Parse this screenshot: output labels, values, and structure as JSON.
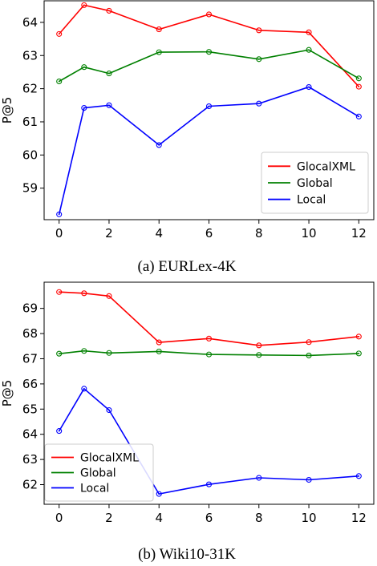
{
  "chart_data": [
    {
      "type": "line",
      "caption": "(a) EURLex-4K",
      "xlabel": "",
      "ylabel": "P@5",
      "x": [
        0,
        1,
        2,
        4,
        6,
        8,
        10,
        12
      ],
      "xticks": [
        0,
        2,
        4,
        6,
        8,
        10,
        12
      ],
      "yticks": [
        59,
        60,
        61,
        62,
        63,
        64
      ],
      "xlim": [
        -0.6,
        12.6
      ],
      "ylim": [
        58.05,
        64.65
      ],
      "grid": false,
      "legend_position": "lower-right",
      "series": [
        {
          "name": "GlocalXML",
          "color": "#ff0000",
          "values": [
            63.65,
            64.52,
            64.35,
            63.79,
            64.24,
            63.76,
            63.7,
            62.06
          ]
        },
        {
          "name": "Global",
          "color": "#008000",
          "values": [
            62.22,
            62.65,
            62.46,
            63.1,
            63.11,
            62.89,
            63.17,
            62.31
          ]
        },
        {
          "name": "Local",
          "color": "#0000ff",
          "values": [
            58.21,
            61.42,
            61.5,
            60.3,
            61.47,
            61.55,
            62.05,
            61.16
          ]
        }
      ]
    },
    {
      "type": "line",
      "caption": "(b) Wiki10-31K",
      "xlabel": "",
      "ylabel": "P@5",
      "x": [
        0,
        1,
        2,
        4,
        6,
        8,
        10,
        12
      ],
      "xticks": [
        0,
        2,
        4,
        6,
        8,
        10,
        12
      ],
      "yticks": [
        62,
        63,
        64,
        65,
        66,
        67,
        68,
        69
      ],
      "xlim": [
        -0.6,
        12.6
      ],
      "ylim": [
        61.22,
        70.04
      ],
      "grid": false,
      "legend_position": "lower-left",
      "series": [
        {
          "name": "GlocalXML",
          "color": "#ff0000",
          "values": [
            69.65,
            69.6,
            69.49,
            67.65,
            67.8,
            67.53,
            67.66,
            67.88
          ]
        },
        {
          "name": "Global",
          "color": "#008000",
          "values": [
            67.2,
            67.31,
            67.23,
            67.29,
            67.17,
            67.15,
            67.13,
            67.21
          ]
        },
        {
          "name": "Local",
          "color": "#0000ff",
          "values": [
            64.13,
            65.81,
            64.96,
            61.63,
            62.01,
            62.27,
            62.19,
            62.34
          ]
        }
      ]
    }
  ]
}
